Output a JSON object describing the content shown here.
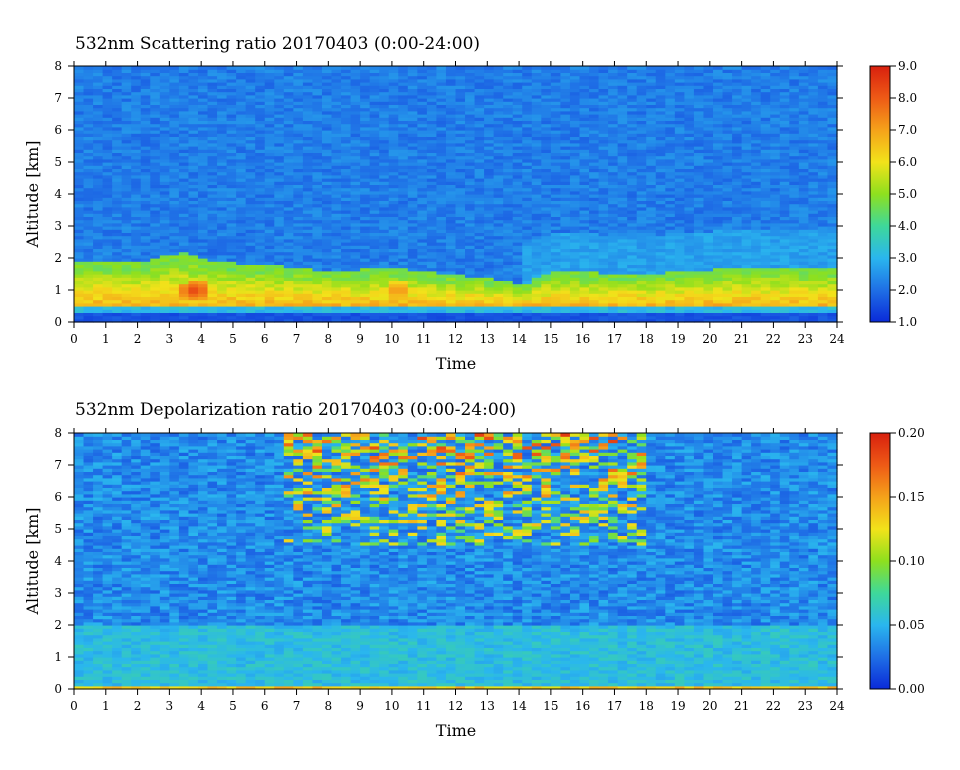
{
  "chart_data": [
    {
      "type": "heatmap",
      "title": "532nm Scattering ratio  20170403 (0:00-24:00)",
      "xlabel": "Time",
      "ylabel": "Altitude [km]",
      "xlim": [
        0,
        24
      ],
      "ylim": [
        0,
        8
      ],
      "x_ticks": [
        "0",
        "1",
        "2",
        "3",
        "4",
        "5",
        "6",
        "7",
        "8",
        "9",
        "10",
        "11",
        "12",
        "13",
        "14",
        "15",
        "16",
        "17",
        "18",
        "19",
        "20",
        "21",
        "22",
        "23",
        "24"
      ],
      "y_ticks": [
        "0",
        "1",
        "2",
        "3",
        "4",
        "5",
        "6",
        "7",
        "8"
      ],
      "colorbar": {
        "min": 1.0,
        "max": 9.0,
        "ticks": [
          "1.0",
          "2.0",
          "3.0",
          "4.0",
          "5.0",
          "6.0",
          "7.0",
          "8.0",
          "9.0"
        ]
      },
      "features": {
        "background_level": 2.2,
        "boundary_layer_top_km": [
          [
            0,
            1.9
          ],
          [
            2,
            1.9
          ],
          [
            3.5,
            2.2
          ],
          [
            4.2,
            1.9
          ],
          [
            6,
            1.8
          ],
          [
            8,
            1.6
          ],
          [
            10,
            1.7
          ],
          [
            12,
            1.5
          ],
          [
            14.2,
            1.2
          ],
          [
            15,
            1.6
          ],
          [
            18,
            1.5
          ],
          [
            21,
            1.7
          ],
          [
            24,
            1.7
          ]
        ],
        "boundary_layer_level": 5.0,
        "aerosol_core_level": 6.8,
        "hotspots": [
          {
            "t": 3.8,
            "alt_km": 1.0,
            "level": 8.5
          },
          {
            "t": 10.2,
            "alt_km": 1.0,
            "level": 7.5
          }
        ]
      }
    },
    {
      "type": "heatmap",
      "title": "532nm Depolarization ratio  20170403 (0:00-24:00)",
      "xlabel": "Time",
      "ylabel": "Altitude [km]",
      "xlim": [
        0,
        24
      ],
      "ylim": [
        0,
        8
      ],
      "x_ticks": [
        "0",
        "1",
        "2",
        "3",
        "4",
        "5",
        "6",
        "7",
        "8",
        "9",
        "10",
        "11",
        "12",
        "13",
        "14",
        "15",
        "16",
        "17",
        "18",
        "19",
        "20",
        "21",
        "22",
        "23",
        "24"
      ],
      "y_ticks": [
        "0",
        "1",
        "2",
        "3",
        "4",
        "5",
        "6",
        "7",
        "8"
      ],
      "colorbar": {
        "min": 0.0,
        "max": 0.2,
        "ticks": [
          "0.00",
          "0.05",
          "0.10",
          "0.15",
          "0.20"
        ]
      },
      "features": {
        "background_level": 0.035,
        "lower_layer_level": 0.055,
        "lower_layer_top_km": 2.0,
        "noisy_region": {
          "t_range": [
            6.5,
            18
          ],
          "alt_range_km": [
            4.5,
            8
          ],
          "peak_level": 0.18
        },
        "surface_band_level": 0.12
      }
    }
  ]
}
